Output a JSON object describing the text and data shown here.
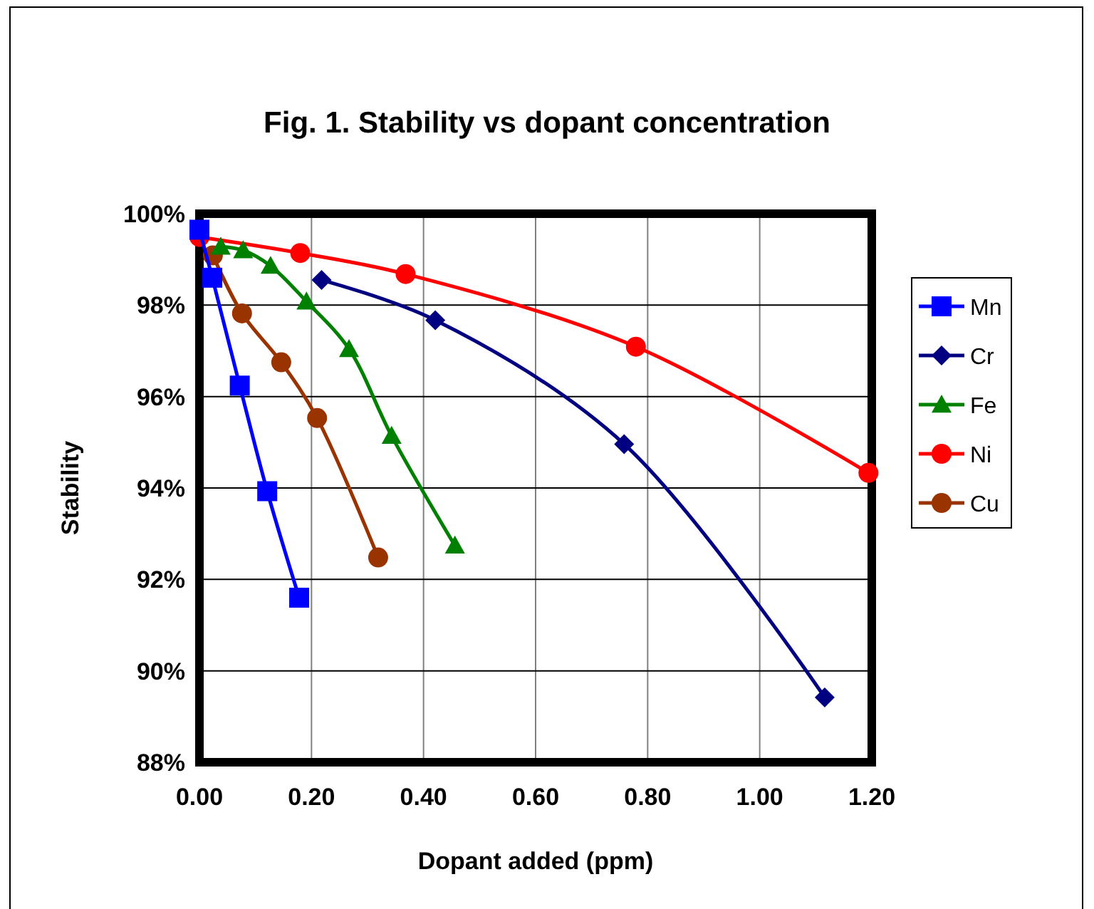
{
  "chart_data": {
    "type": "line",
    "title": "Fig. 1. Stability vs dopant concentration",
    "xlabel": "Dopant added (ppm)",
    "ylabel": "Stability",
    "xlim": [
      0,
      1.2
    ],
    "ylim": [
      88,
      100
    ],
    "xticks": [
      {
        "value": 0,
        "label": "0.00"
      },
      {
        "value": 0.2,
        "label": "0.20"
      },
      {
        "value": 0.4,
        "label": "0.40"
      },
      {
        "value": 0.6,
        "label": "0.60"
      },
      {
        "value": 0.8,
        "label": "0.80"
      },
      {
        "value": 1,
        "label": "1.00"
      },
      {
        "value": 1.2,
        "label": "1.20"
      }
    ],
    "yticks": [
      {
        "value": 88,
        "label": "88%"
      },
      {
        "value": 90,
        "label": "90%"
      },
      {
        "value": 92,
        "label": "92%"
      },
      {
        "value": 94,
        "label": "94%"
      },
      {
        "value": 96,
        "label": "96%"
      },
      {
        "value": 98,
        "label": "98%"
      },
      {
        "value": 100,
        "label": "100%"
      }
    ],
    "grid": true,
    "legend": "right",
    "series": [
      {
        "name": "Mn",
        "color": "#0000ff",
        "marker": "square",
        "x": [
          0,
          0.023,
          0.072,
          0.121,
          0.178
        ],
        "values": [
          99.65,
          98.6,
          96.24,
          93.93,
          91.6
        ]
      },
      {
        "name": "Cr",
        "color": "#000080",
        "marker": "diamond",
        "x": [
          0.218,
          0.421,
          0.758,
          1.116
        ],
        "values": [
          98.55,
          97.67,
          94.96,
          89.42
        ]
      },
      {
        "name": "Fe",
        "color": "#008000",
        "marker": "triangle",
        "x": [
          0.038,
          0.078,
          0.127,
          0.191,
          0.267,
          0.343,
          0.456
        ],
        "values": [
          99.28,
          99.2,
          98.86,
          98.08,
          97.04,
          95.14,
          92.74
        ]
      },
      {
        "name": "Ni",
        "color": "#ff0000",
        "marker": "circle",
        "x": [
          0,
          0.18,
          0.368,
          0.779,
          1.194
        ],
        "values": [
          99.49,
          99.14,
          98.68,
          97.09,
          94.33
        ]
      },
      {
        "name": "Cu",
        "color": "#993300",
        "marker": "circle",
        "x": [
          0.024,
          0.076,
          0.146,
          0.21,
          0.319
        ],
        "values": [
          99.09,
          97.82,
          96.75,
          95.53,
          92.48
        ]
      }
    ]
  }
}
